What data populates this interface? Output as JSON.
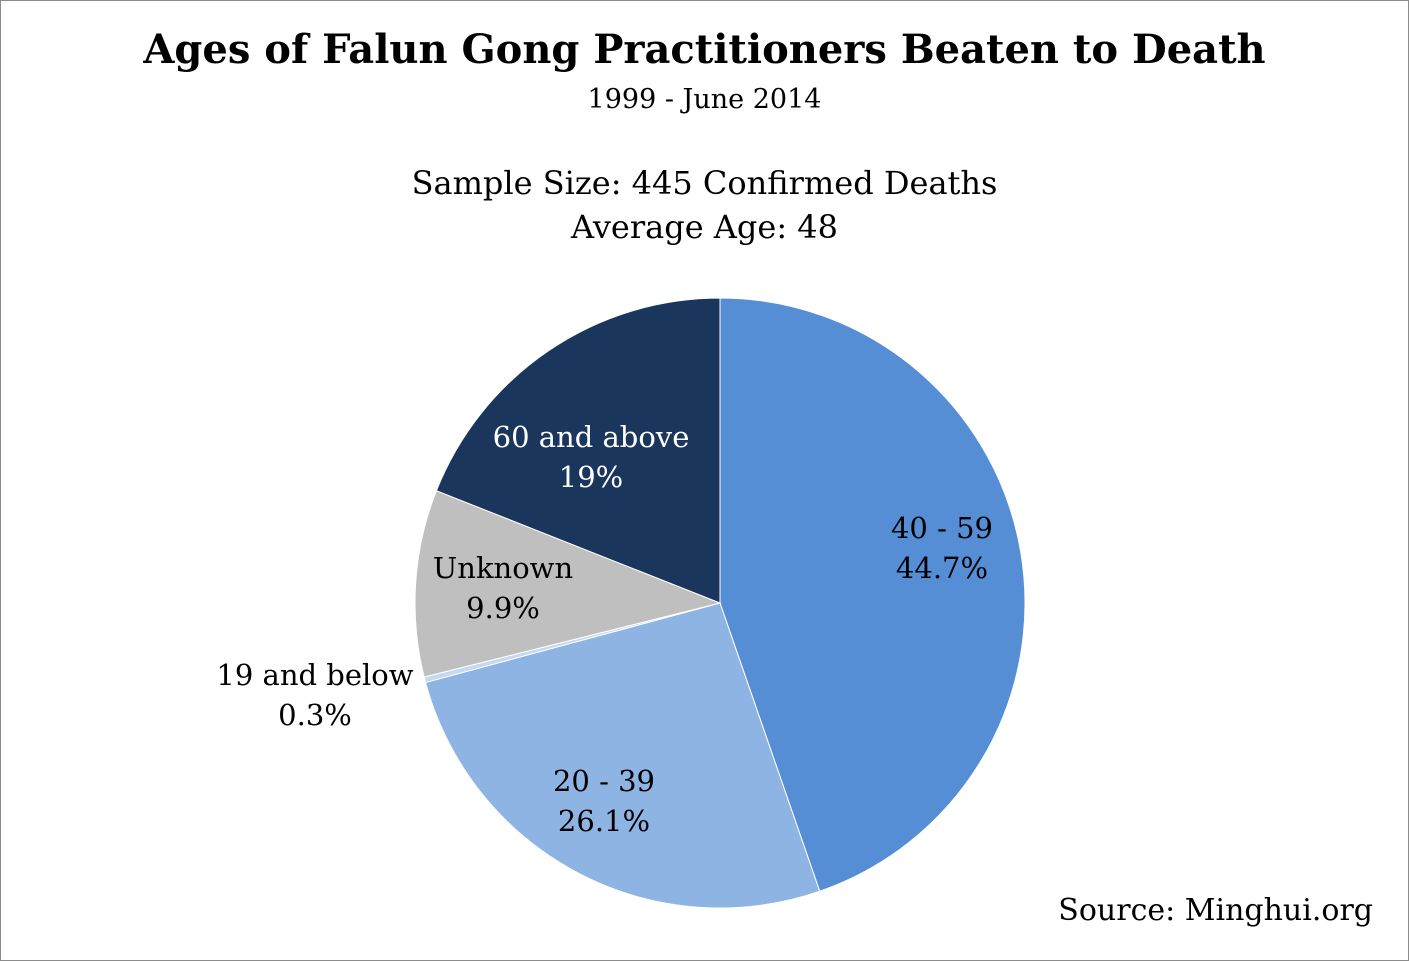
{
  "chart_data": {
    "type": "pie",
    "title": "Ages of Falun Gong Practitioners Beaten to Death",
    "subtitle": "1999 - June 2014",
    "annotations": [
      "Sample Size: 445 Confirmed Deaths",
      "Average Age: 48"
    ],
    "source": "Source: Minghui.org",
    "slices": [
      {
        "category": "40 - 59",
        "value": 44.7,
        "label": "44.7%",
        "color": "#558ed5",
        "text_color": "#000000"
      },
      {
        "category": "20 - 39",
        "value": 26.1,
        "label": "26.1%",
        "color": "#8eb4e3",
        "text_color": "#000000"
      },
      {
        "category": "19 and below",
        "value": 0.3,
        "label": "0.3%",
        "color": "#c6d9f1",
        "text_color": "#000000"
      },
      {
        "category": "Unknown",
        "value": 9.9,
        "label": "9.9%",
        "color": "#bfbfbf",
        "text_color": "#000000"
      },
      {
        "category": "60 and above",
        "value": 19.0,
        "label": "19%",
        "color": "#1b365d",
        "text_color": "#ffffff"
      }
    ],
    "start_angle": "top",
    "direction": "clockwise"
  }
}
